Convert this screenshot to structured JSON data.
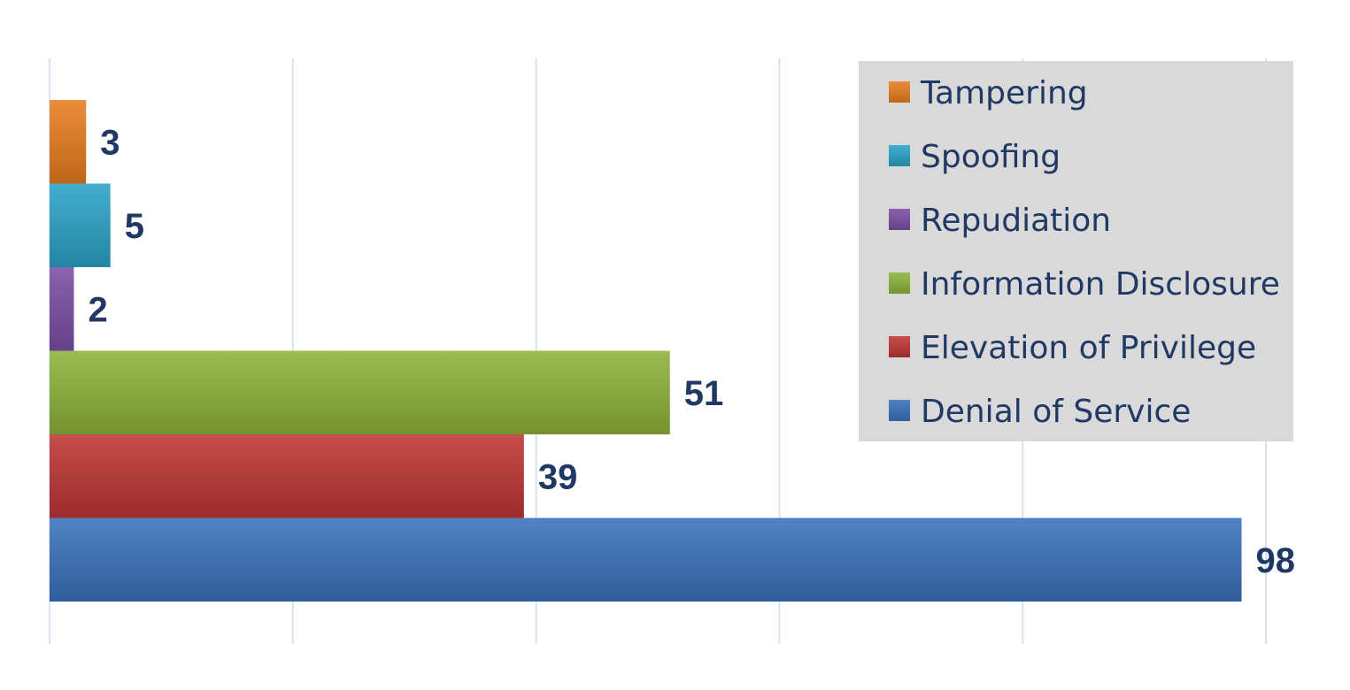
{
  "chart_data": {
    "type": "bar",
    "orientation": "horizontal",
    "xlim": [
      0,
      100
    ],
    "grid": true,
    "legend_position": "right",
    "data_labels": true,
    "series": [
      {
        "name": "Tampering",
        "value": 3,
        "color": "#e87d1e"
      },
      {
        "name": "Spoofing",
        "value": 5,
        "color": "#2ba3c7"
      },
      {
        "name": "Repudiation",
        "value": 2,
        "color": "#7a4fa3"
      },
      {
        "name": "Information Disclosure",
        "value": 51,
        "color": "#8db33a"
      },
      {
        "name": "Elevation of Privilege",
        "value": 39,
        "color": "#be3634"
      },
      {
        "name": "Denial of Service",
        "value": 98,
        "color": "#3a71bd"
      }
    ]
  }
}
